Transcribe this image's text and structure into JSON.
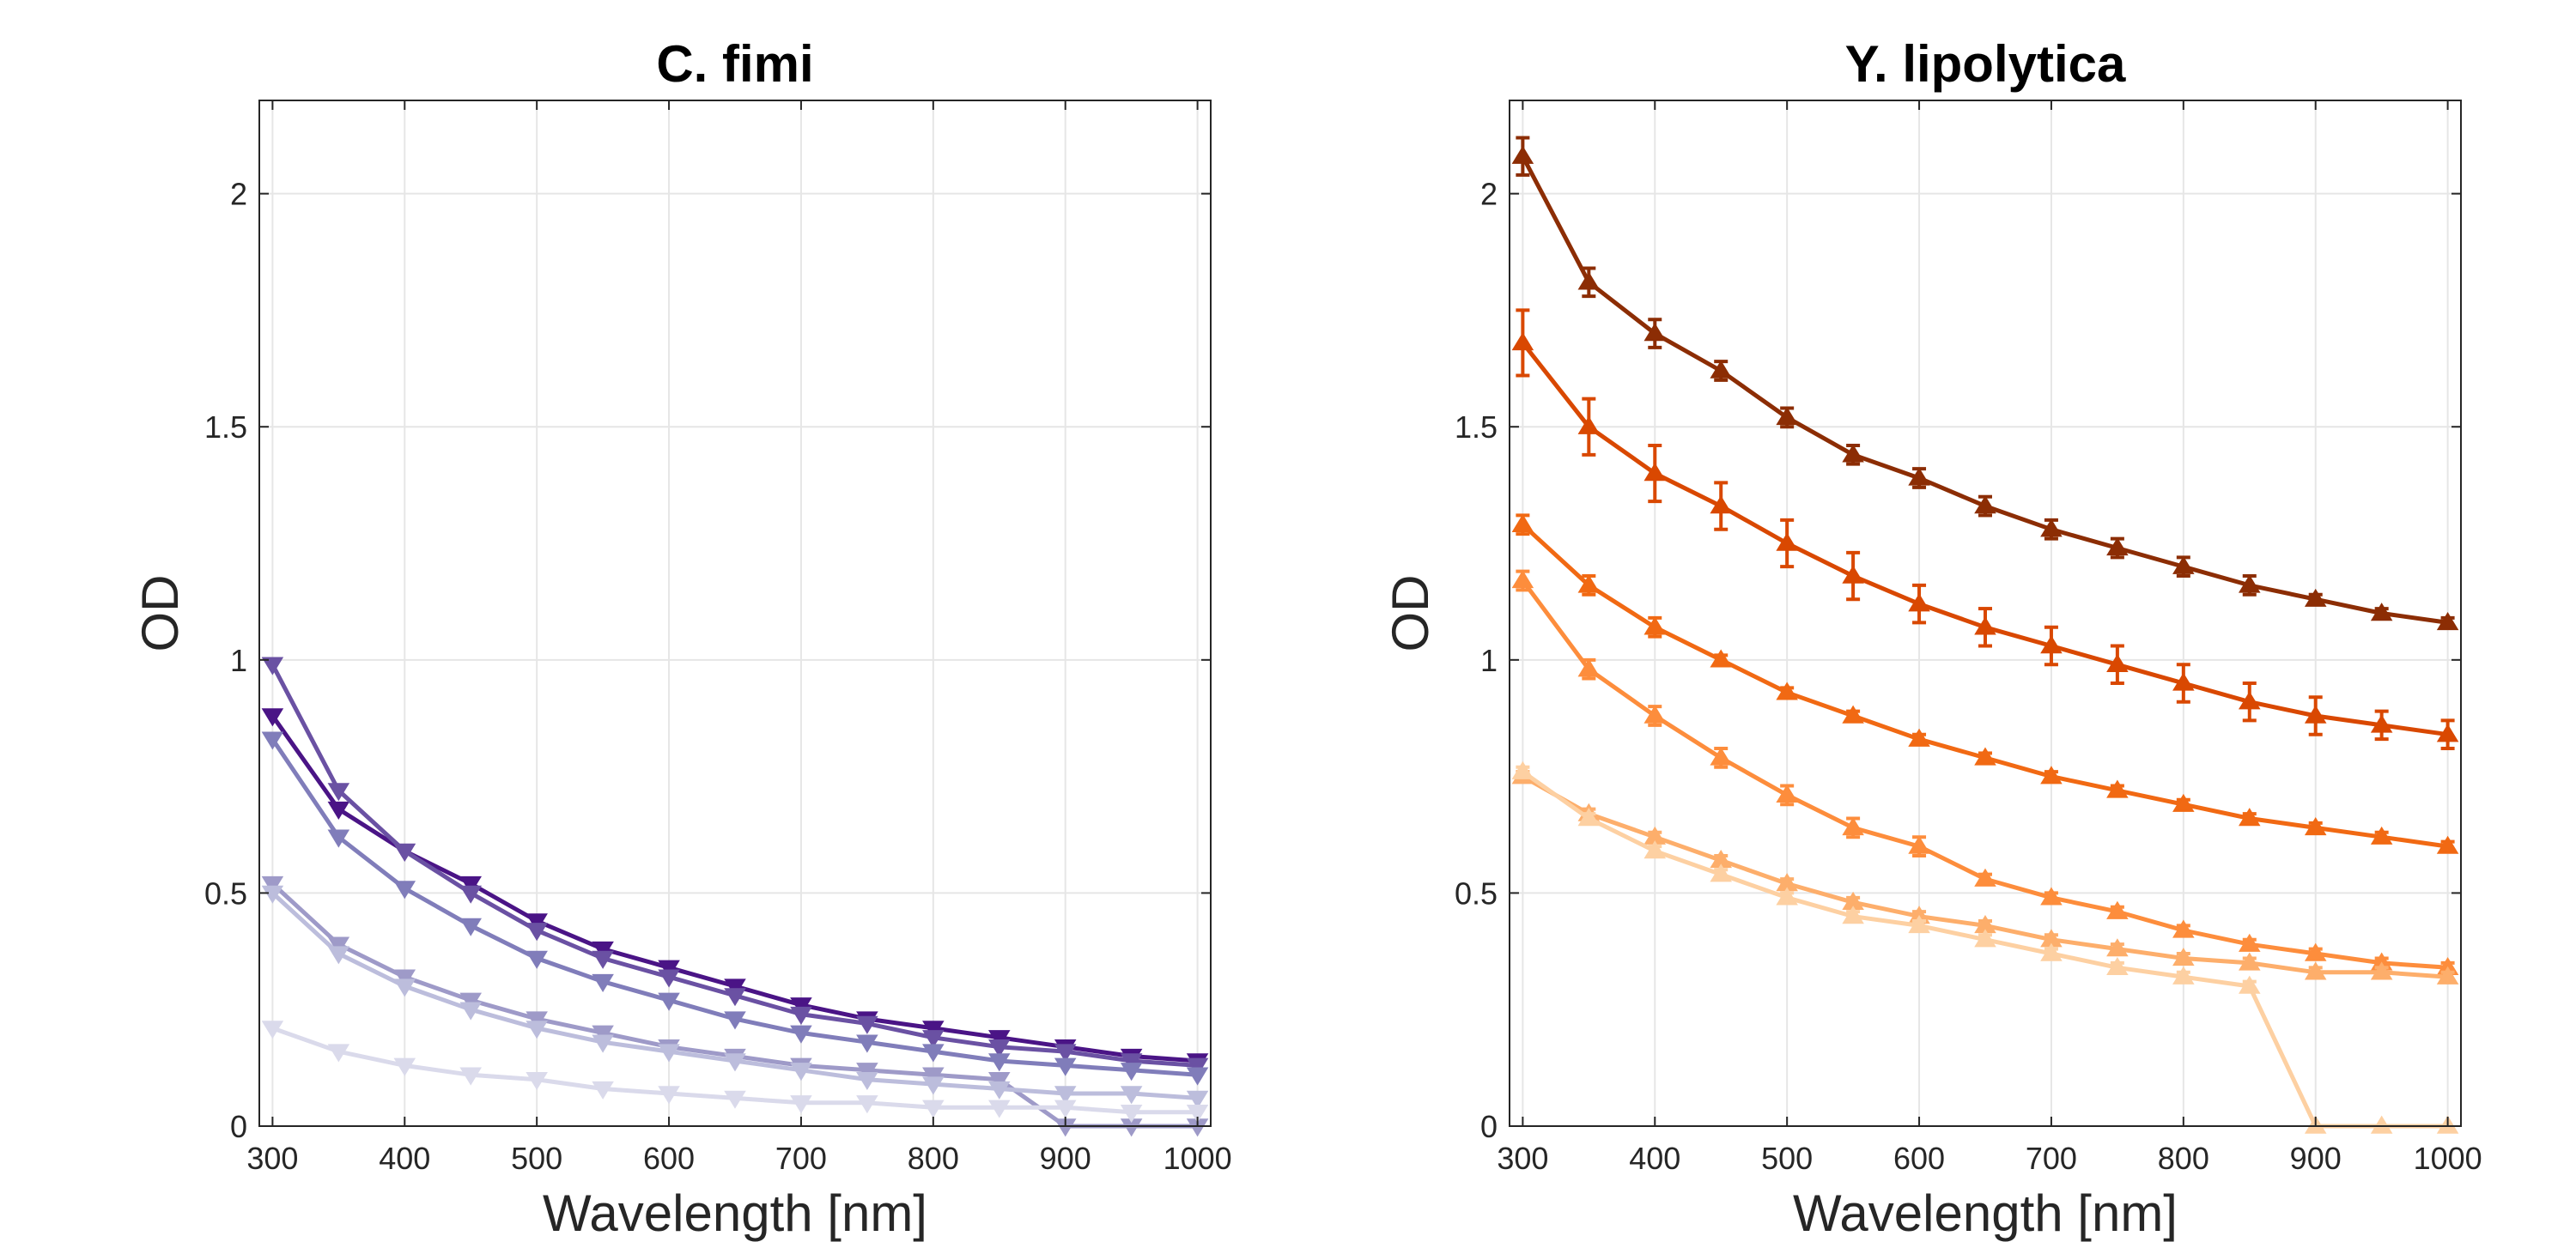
{
  "chart_data": [
    {
      "type": "line",
      "title": "C. fimi",
      "xlabel": "Wavelength [nm]",
      "ylabel": "OD",
      "xlim": [
        290,
        1010
      ],
      "ylim": [
        0,
        2.2
      ],
      "xticks": [
        300,
        400,
        500,
        600,
        700,
        800,
        900,
        1000
      ],
      "yticks": [
        0,
        0.5,
        1,
        1.5,
        2
      ],
      "ytick_labels": [
        "0",
        "0.5",
        "1",
        "1.5",
        "2"
      ],
      "grid": true,
      "marker": "triangle-down",
      "x": [
        300,
        350,
        400,
        450,
        500,
        550,
        600,
        650,
        700,
        750,
        800,
        850,
        900,
        950,
        1000
      ],
      "series": [
        {
          "color": "#4a1486",
          "values": [
            0.88,
            0.68,
            0.59,
            0.52,
            0.44,
            0.38,
            0.34,
            0.3,
            0.26,
            0.23,
            0.21,
            0.19,
            0.17,
            0.15,
            0.14
          ]
        },
        {
          "color": "#6a51a3",
          "values": [
            0.99,
            0.72,
            0.59,
            0.5,
            0.42,
            0.36,
            0.32,
            0.28,
            0.24,
            0.22,
            0.19,
            0.17,
            0.16,
            0.14,
            0.13
          ]
        },
        {
          "color": "#807dba",
          "values": [
            0.83,
            0.62,
            0.51,
            0.43,
            0.36,
            0.31,
            0.27,
            0.23,
            0.2,
            0.18,
            0.16,
            0.14,
            0.13,
            0.12,
            0.11
          ]
        },
        {
          "color": "#9e9ac8",
          "values": [
            0.52,
            0.39,
            0.32,
            0.27,
            0.23,
            0.2,
            0.17,
            0.15,
            0.13,
            0.12,
            0.11,
            0.1,
            0.0,
            0.0,
            0.0
          ]
        },
        {
          "color": "#bcbddc",
          "values": [
            0.5,
            0.37,
            0.3,
            0.25,
            0.21,
            0.18,
            0.16,
            0.14,
            0.12,
            0.1,
            0.09,
            0.08,
            0.07,
            0.07,
            0.06
          ]
        },
        {
          "color": "#dadaeb",
          "values": [
            0.21,
            0.16,
            0.13,
            0.11,
            0.1,
            0.08,
            0.07,
            0.06,
            0.05,
            0.05,
            0.04,
            0.04,
            0.04,
            0.03,
            0.03
          ]
        }
      ]
    },
    {
      "type": "line",
      "title": "Y. lipolytica",
      "xlabel": "Wavelength [nm]",
      "ylabel": "OD",
      "xlim": [
        290,
        1010
      ],
      "ylim": [
        0,
        2.2
      ],
      "xticks": [
        300,
        400,
        500,
        600,
        700,
        800,
        900,
        1000
      ],
      "yticks": [
        0,
        0.5,
        1,
        1.5,
        2
      ],
      "ytick_labels": [
        "0",
        "0.5",
        "1",
        "1.5",
        "2"
      ],
      "grid": true,
      "marker": "triangle-up",
      "error_bars": true,
      "x": [
        300,
        350,
        400,
        450,
        500,
        550,
        600,
        650,
        700,
        750,
        800,
        850,
        900,
        950,
        1000
      ],
      "series": [
        {
          "color": "#8c2d04",
          "values": [
            2.08,
            1.81,
            1.7,
            1.62,
            1.52,
            1.44,
            1.39,
            1.33,
            1.28,
            1.24,
            1.2,
            1.16,
            1.13,
            1.1,
            1.08
          ],
          "errors": [
            0.04,
            0.03,
            0.03,
            0.02,
            0.02,
            0.02,
            0.02,
            0.02,
            0.02,
            0.02,
            0.02,
            0.02,
            0.01,
            0.01,
            0.01
          ]
        },
        {
          "color": "#d94801",
          "values": [
            1.68,
            1.5,
            1.4,
            1.33,
            1.25,
            1.18,
            1.12,
            1.07,
            1.03,
            0.99,
            0.95,
            0.91,
            0.88,
            0.86,
            0.84
          ],
          "errors": [
            0.07,
            0.06,
            0.06,
            0.05,
            0.05,
            0.05,
            0.04,
            0.04,
            0.04,
            0.04,
            0.04,
            0.04,
            0.04,
            0.03,
            0.03
          ]
        },
        {
          "color": "#f16913",
          "values": [
            1.29,
            1.16,
            1.07,
            1.0,
            0.93,
            0.88,
            0.83,
            0.79,
            0.75,
            0.72,
            0.69,
            0.66,
            0.64,
            0.62,
            0.6
          ],
          "errors": [
            0.02,
            0.02,
            0.02,
            0.01,
            0.01,
            0.01,
            0.01,
            0.01,
            0.01,
            0.01,
            0.01,
            0.01,
            0.01,
            0.01,
            0.01
          ]
        },
        {
          "color": "#fd8d3c",
          "values": [
            1.17,
            0.98,
            0.88,
            0.79,
            0.71,
            0.64,
            0.6,
            0.53,
            0.49,
            0.46,
            0.42,
            0.39,
            0.37,
            0.35,
            0.34
          ],
          "errors": [
            0.02,
            0.02,
            0.02,
            0.02,
            0.02,
            0.02,
            0.02,
            0.01,
            0.01,
            0.01,
            0.01,
            0.01,
            0.01,
            0.01,
            0.01
          ]
        },
        {
          "color": "#fdae6b",
          "values": [
            0.75,
            0.67,
            0.62,
            0.57,
            0.52,
            0.48,
            0.45,
            0.43,
            0.4,
            0.38,
            0.36,
            0.35,
            0.33,
            0.33,
            0.32
          ],
          "errors": [
            0.01,
            0.01,
            0.01,
            0.01,
            0.01,
            0.01,
            0.01,
            0.01,
            0.01,
            0.01,
            0.01,
            0.01,
            0.01,
            0.01,
            0.01
          ]
        },
        {
          "color": "#fdd0a2",
          "values": [
            0.76,
            0.66,
            0.59,
            0.54,
            0.49,
            0.45,
            0.43,
            0.4,
            0.37,
            0.34,
            0.32,
            0.3,
            0.0,
            0.0,
            0.0
          ],
          "errors": [
            0.01,
            0.01,
            0.01,
            0.01,
            0.01,
            0.01,
            0.01,
            0.01,
            0.01,
            0.01,
            0.01,
            0.01,
            0.0,
            0.0,
            0.0
          ]
        }
      ]
    }
  ]
}
